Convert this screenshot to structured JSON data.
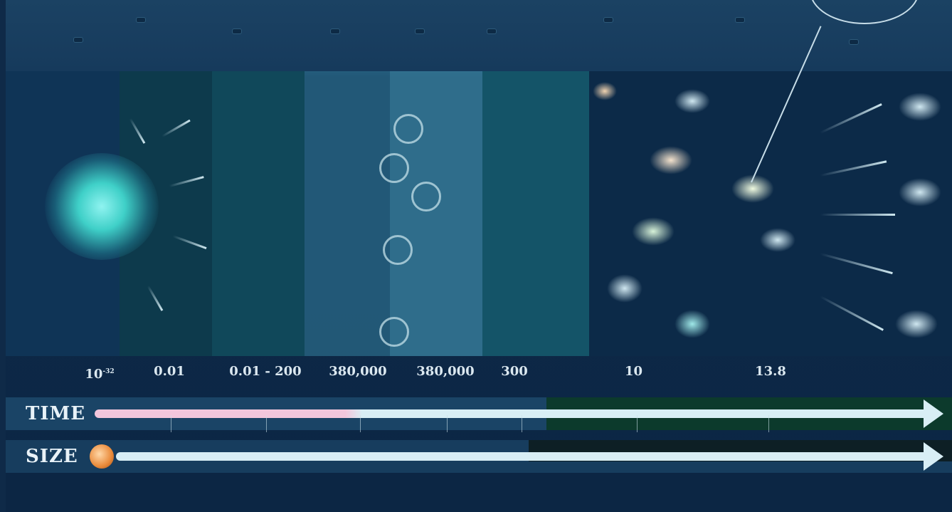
{
  "eras": [
    {
      "title": "",
      "sub": ""
    },
    {
      "title": "",
      "sub": ""
    },
    {
      "title": "",
      "sub": ""
    },
    {
      "title": "",
      "sub": ""
    },
    {
      "title": "",
      "sub": ""
    },
    {
      "title": "",
      "sub": ""
    },
    {
      "title": "",
      "sub": ""
    },
    {
      "title": "",
      "sub": ""
    },
    {
      "title": "",
      "sub": ""
    }
  ],
  "timeline": {
    "time_label": "TIME",
    "size_label": "SIZE",
    "time_values": [
      {
        "unit": "",
        "value": "10",
        "sup": "-32",
        "scale": ""
      },
      {
        "unit": "",
        "value": "0.01",
        "scale": ""
      },
      {
        "unit": "",
        "value": "0.01 - 200",
        "scale": ""
      },
      {
        "unit": "",
        "value": "380,000",
        "scale": ""
      },
      {
        "unit": "",
        "value": "380,000",
        "scale": ""
      },
      {
        "unit": "",
        "value": "300",
        "scale": ""
      },
      {
        "unit": "",
        "value": "10",
        "scale": ""
      },
      {
        "unit": "",
        "value": "13.8",
        "scale": ""
      }
    ],
    "size_values": [
      "",
      "",
      "",
      "",
      "",
      "",
      "",
      ""
    ]
  },
  "colors": {
    "background": "#0c2644",
    "accent_teal": "#3fd0c8",
    "arrow": "#d8eef5",
    "pink_segment": "#f2c6dc"
  },
  "icons": [
    "arrow-right-icon",
    "orange-sphere-icon"
  ]
}
